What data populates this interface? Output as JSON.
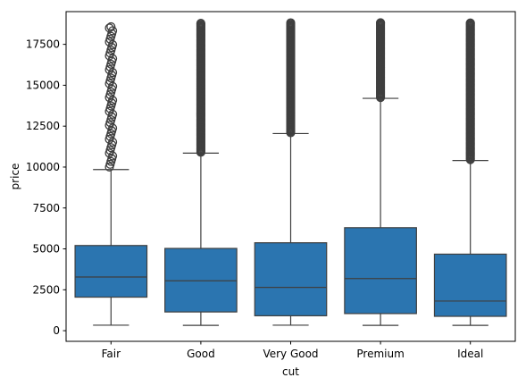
{
  "chart_data": {
    "type": "boxplot",
    "xlabel": "cut",
    "ylabel": "price",
    "ylim": [
      -650,
      19500
    ],
    "yticks": [
      0,
      2500,
      5000,
      7500,
      10000,
      12500,
      15000,
      17500
    ],
    "ytick_labels": [
      "0",
      "2500",
      "5000",
      "7500",
      "10000",
      "12500",
      "15000",
      "17500"
    ],
    "categories": [
      "Fair",
      "Good",
      "Very Good",
      "Premium",
      "Ideal"
    ],
    "box_color": "#2b75b0",
    "edge_color": "#3f3f3f",
    "boxes": [
      {
        "whisker_low": 337,
        "q1": 2050,
        "median": 3282,
        "q3": 5206,
        "whisker_high": 9850,
        "outliers_min": 10000,
        "outliers_max": 18574,
        "outliers_sparse": true
      },
      {
        "whisker_low": 327,
        "q1": 1145,
        "median": 3050,
        "q3": 5028,
        "whisker_high": 10850,
        "outliers_min": 10900,
        "outliers_max": 18788,
        "outliers_sparse": false
      },
      {
        "whisker_low": 336,
        "q1": 912,
        "median": 2648,
        "q3": 5373,
        "whisker_high": 12050,
        "outliers_min": 12100,
        "outliers_max": 18818,
        "outliers_sparse": false
      },
      {
        "whisker_low": 326,
        "q1": 1046,
        "median": 3185,
        "q3": 6296,
        "whisker_high": 14200,
        "outliers_min": 14250,
        "outliers_max": 18823,
        "outliers_sparse": false
      },
      {
        "whisker_low": 326,
        "q1": 878,
        "median": 1810,
        "q3": 4678,
        "whisker_high": 10400,
        "outliers_min": 10450,
        "outliers_max": 18806,
        "outliers_sparse": false
      }
    ]
  }
}
